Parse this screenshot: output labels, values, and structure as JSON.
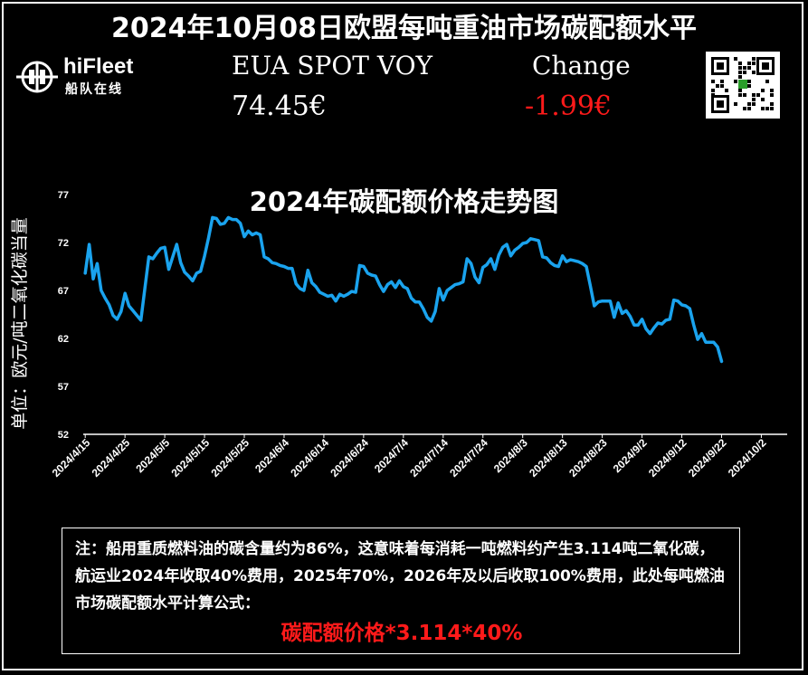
{
  "header": {
    "title": "2024年10月08日欧盟每吨重油市场碳配额水平",
    "logo_text": "hiFleet",
    "logo_sub": "船队在线"
  },
  "price": {
    "label": "EUA SPOT VOY",
    "value": "74.45€",
    "change_label": "Change",
    "change_value": "-1.99€"
  },
  "note": {
    "text": "注：船用重质燃料油的碳含量约为86%，这意味着每消耗一吨燃料约产生3.114吨二氧化碳，航运业2024年收取40%费用，2025年70%，2026年及以后收取100%费用，此处每吨燃油市场碳配额水平计算公式：",
    "formula": "碳配额价格*3.114*40%"
  },
  "colors": {
    "line": "#1aa3ee",
    "change": "#ff1a1a"
  },
  "icons": [
    "hifleet-logo-icon",
    "qr-code-icon"
  ],
  "chart_data": {
    "type": "line",
    "title": "2024年碳配额价格走势图",
    "ylabel": "单位：欧元/吨二氧化碳当量",
    "xlabel": "",
    "ylim": [
      52,
      77
    ],
    "yticks": [
      77,
      72,
      67,
      62,
      57,
      52
    ],
    "x_ticks": [
      "2024/4/15",
      "2024/4/25",
      "2024/5/5",
      "2024/5/15",
      "2024/5/25",
      "2024/6/4",
      "2024/6/14",
      "2024/6/24",
      "2024/7/4",
      "2024/7/14",
      "2024/7/24",
      "2024/8/3",
      "2024/8/13",
      "2024/8/23",
      "2024/9/2",
      "2024/9/12",
      "2024/9/22",
      "2024/10/2"
    ],
    "x_range_days": [
      -0.5,
      176.5
    ],
    "series": [
      {
        "name": "",
        "points": [
          [
            0,
            68.8
          ],
          [
            1,
            71.8
          ],
          [
            2,
            68.2
          ],
          [
            3,
            69.8
          ],
          [
            4,
            67.0
          ],
          [
            5,
            66.2
          ],
          [
            6,
            65.5
          ],
          [
            7,
            64.4
          ],
          [
            8,
            64.0
          ],
          [
            9,
            64.8
          ],
          [
            10,
            66.7
          ],
          [
            11,
            65.4
          ],
          [
            12,
            64.9
          ],
          [
            13,
            64.4
          ],
          [
            14,
            63.9
          ],
          [
            15,
            67.2
          ],
          [
            16,
            70.5
          ],
          [
            17,
            70.3
          ],
          [
            18,
            70.9
          ],
          [
            19,
            71.4
          ],
          [
            20,
            71.5
          ],
          [
            21,
            69.2
          ],
          [
            22,
            70.5
          ],
          [
            23,
            71.8
          ],
          [
            24,
            69.9
          ],
          [
            25,
            68.9
          ],
          [
            26,
            68.5
          ],
          [
            27,
            68.0
          ],
          [
            28,
            68.8
          ],
          [
            29,
            69.0
          ],
          [
            30,
            70.6
          ],
          [
            31,
            72.5
          ],
          [
            32,
            74.6
          ],
          [
            33,
            74.5
          ],
          [
            34,
            73.9
          ],
          [
            35,
            74.0
          ],
          [
            36,
            74.6
          ],
          [
            37,
            74.4
          ],
          [
            38,
            74.4
          ],
          [
            39,
            74.0
          ],
          [
            40,
            72.6
          ],
          [
            41,
            73.2
          ],
          [
            42,
            72.8
          ],
          [
            43,
            73.0
          ],
          [
            44,
            72.8
          ],
          [
            45,
            70.5
          ],
          [
            46,
            70.3
          ],
          [
            47,
            69.9
          ],
          [
            48,
            69.8
          ],
          [
            49,
            69.6
          ],
          [
            50,
            69.5
          ],
          [
            51,
            69.3
          ],
          [
            52,
            69.3
          ],
          [
            53,
            67.7
          ],
          [
            54,
            67.2
          ],
          [
            55,
            67.0
          ],
          [
            56,
            69.1
          ],
          [
            57,
            67.8
          ],
          [
            58,
            67.4
          ],
          [
            59,
            66.8
          ],
          [
            60,
            66.6
          ],
          [
            61,
            66.4
          ],
          [
            62,
            66.5
          ],
          [
            63,
            65.9
          ],
          [
            64,
            66.6
          ],
          [
            65,
            66.4
          ],
          [
            66,
            66.6
          ],
          [
            67,
            66.9
          ],
          [
            68,
            66.8
          ],
          [
            69,
            69.6
          ],
          [
            70,
            69.5
          ],
          [
            71,
            68.8
          ],
          [
            72,
            68.6
          ],
          [
            73,
            68.5
          ],
          [
            74,
            67.6
          ],
          [
            75,
            66.9
          ],
          [
            76,
            67.6
          ],
          [
            77,
            67.9
          ],
          [
            78,
            67.3
          ],
          [
            79,
            68.0
          ],
          [
            80,
            67.4
          ],
          [
            81,
            67.2
          ],
          [
            82,
            66.2
          ],
          [
            83,
            65.8
          ],
          [
            84,
            65.8
          ],
          [
            85,
            65.1
          ],
          [
            86,
            64.2
          ],
          [
            87,
            63.8
          ],
          [
            88,
            64.8
          ],
          [
            89,
            67.2
          ],
          [
            90,
            66.0
          ],
          [
            91,
            67.0
          ],
          [
            92,
            67.3
          ],
          [
            93,
            67.6
          ],
          [
            94,
            67.7
          ],
          [
            95,
            67.9
          ],
          [
            96,
            70.3
          ],
          [
            97,
            69.8
          ],
          [
            98,
            68.4
          ],
          [
            99,
            67.8
          ],
          [
            100,
            69.4
          ],
          [
            101,
            69.7
          ],
          [
            102,
            70.3
          ],
          [
            103,
            69.2
          ],
          [
            104,
            70.7
          ],
          [
            105,
            71.5
          ],
          [
            106,
            71.8
          ],
          [
            107,
            70.6
          ],
          [
            108,
            71.2
          ],
          [
            109,
            71.5
          ],
          [
            110,
            71.9
          ],
          [
            111,
            72.0
          ],
          [
            112,
            72.4
          ],
          [
            113,
            72.3
          ],
          [
            114,
            72.2
          ],
          [
            115,
            70.5
          ],
          [
            116,
            70.4
          ],
          [
            117,
            69.9
          ],
          [
            118,
            69.6
          ],
          [
            119,
            69.5
          ],
          [
            120,
            70.6
          ],
          [
            121,
            70.0
          ],
          [
            122,
            70.2
          ],
          [
            123,
            70.1
          ],
          [
            124,
            70.0
          ],
          [
            125,
            69.8
          ],
          [
            126,
            69.5
          ],
          [
            127,
            67.5
          ],
          [
            128,
            65.4
          ],
          [
            129,
            65.8
          ],
          [
            130,
            65.9
          ],
          [
            131,
            65.9
          ],
          [
            132,
            65.9
          ],
          [
            133,
            64.2
          ],
          [
            134,
            65.7
          ],
          [
            135,
            64.6
          ],
          [
            136,
            64.9
          ],
          [
            137,
            64.3
          ],
          [
            138,
            63.4
          ],
          [
            139,
            63.4
          ],
          [
            140,
            64.0
          ],
          [
            141,
            63.0
          ],
          [
            142,
            62.5
          ],
          [
            143,
            63.1
          ],
          [
            144,
            63.6
          ],
          [
            145,
            63.5
          ],
          [
            146,
            63.9
          ],
          [
            147,
            64.0
          ],
          [
            148,
            66.0
          ],
          [
            149,
            65.9
          ],
          [
            150,
            65.5
          ],
          [
            151,
            65.4
          ],
          [
            152,
            65.1
          ],
          [
            153,
            63.4
          ],
          [
            154,
            61.9
          ],
          [
            155,
            62.5
          ],
          [
            156,
            61.6
          ],
          [
            157,
            61.6
          ],
          [
            158,
            61.6
          ],
          [
            159,
            61.1
          ],
          [
            160,
            59.6
          ]
        ]
      }
    ]
  }
}
